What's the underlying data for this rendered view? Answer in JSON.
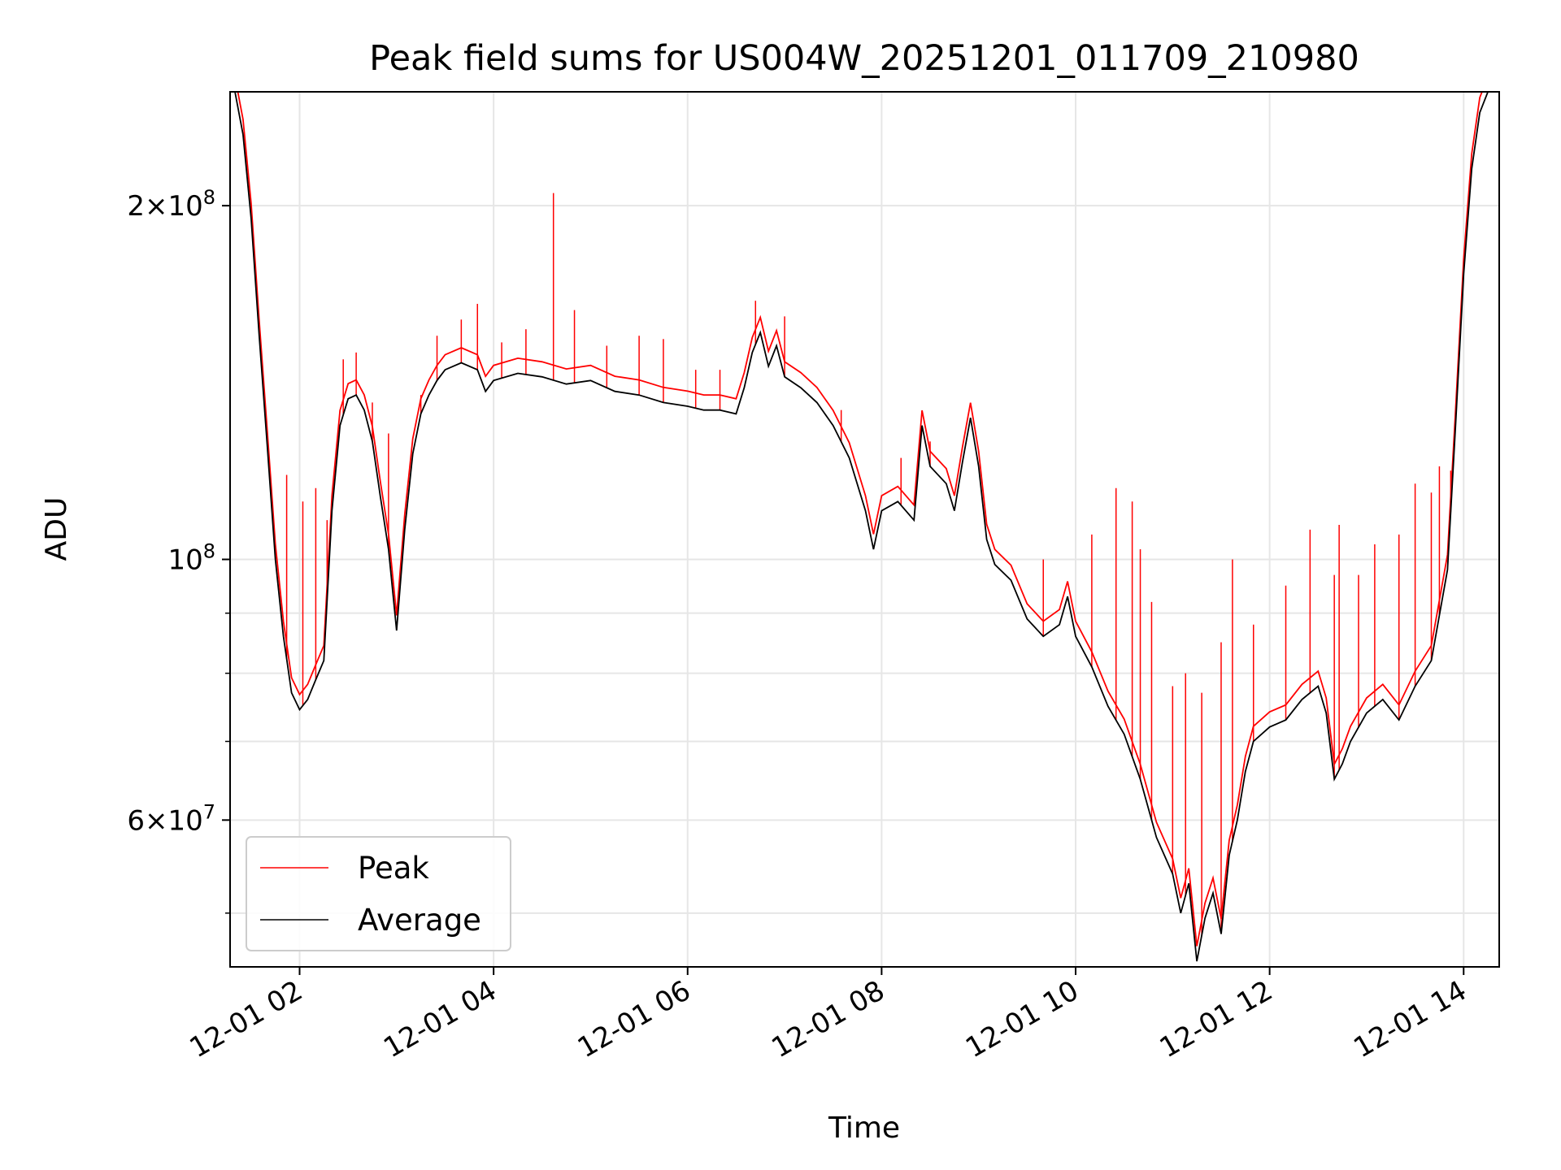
{
  "chart_data": {
    "type": "line",
    "title": "Peak field sums for US004W_20251201_011709_210980",
    "xlabel": "Time",
    "ylabel": "ADU",
    "yscale": "log",
    "ylim": [
      45000000,
      250000000
    ],
    "xlim": [
      "2025-12-01 01:17",
      "2025-12-01 14:22"
    ],
    "grid": true,
    "legend_position": "lower-left",
    "x_ticks": [
      "2025-12-01 02:00",
      "2025-12-01 04:00",
      "2025-12-01 06:00",
      "2025-12-01 08:00",
      "2025-12-01 10:00",
      "2025-12-01 12:00",
      "2025-12-01 14:00"
    ],
    "x_tick_labels": [
      "12-01 02",
      "12-01 04",
      "12-01 06",
      "12-01 08",
      "12-01 10",
      "12-01 12",
      "12-01 14"
    ],
    "y_ticks": [
      {
        "value": 200000000,
        "mantissa": "2",
        "exp": "8"
      },
      {
        "value": 100000000,
        "mantissa": "",
        "exp": "8"
      },
      {
        "value": 60000000,
        "mantissa": "6",
        "exp": "7"
      }
    ],
    "y_minor_ticks": [
      50000000,
      70000000,
      80000000,
      90000000
    ],
    "series": [
      {
        "name": "Average",
        "color": "#000000",
        "points": [
          [
            "2025-12-01 01:20",
            250000000
          ],
          [
            "2025-12-01 01:25",
            230000000
          ],
          [
            "2025-12-01 01:30",
            195000000
          ],
          [
            "2025-12-01 01:35",
            155000000
          ],
          [
            "2025-12-01 01:40",
            125000000
          ],
          [
            "2025-12-01 01:45",
            100000000
          ],
          [
            "2025-12-01 01:50",
            86000000
          ],
          [
            "2025-12-01 01:55",
            77000000
          ],
          [
            "2025-12-01 02:00",
            74500000
          ],
          [
            "2025-12-01 02:05",
            76000000
          ],
          [
            "2025-12-01 02:10",
            79000000
          ],
          [
            "2025-12-01 02:15",
            82000000
          ],
          [
            "2025-12-01 02:20",
            110000000
          ],
          [
            "2025-12-01 02:25",
            130000000
          ],
          [
            "2025-12-01 02:30",
            137000000
          ],
          [
            "2025-12-01 02:35",
            138000000
          ],
          [
            "2025-12-01 02:40",
            134000000
          ],
          [
            "2025-12-01 02:45",
            126000000
          ],
          [
            "2025-12-01 02:50",
            113000000
          ],
          [
            "2025-12-01 02:55",
            102000000
          ],
          [
            "2025-12-01 03:00",
            87000000
          ],
          [
            "2025-12-01 03:05",
            106000000
          ],
          [
            "2025-12-01 03:10",
            123000000
          ],
          [
            "2025-12-01 03:15",
            133000000
          ],
          [
            "2025-12-01 03:20",
            138000000
          ],
          [
            "2025-12-01 03:25",
            142000000
          ],
          [
            "2025-12-01 03:30",
            145000000
          ],
          [
            "2025-12-01 03:40",
            147000000
          ],
          [
            "2025-12-01 03:50",
            145000000
          ],
          [
            "2025-12-01 03:55",
            139000000
          ],
          [
            "2025-12-01 04:00",
            142000000
          ],
          [
            "2025-12-01 04:15",
            144000000
          ],
          [
            "2025-12-01 04:30",
            143000000
          ],
          [
            "2025-12-01 04:45",
            141000000
          ],
          [
            "2025-12-01 05:00",
            142000000
          ],
          [
            "2025-12-01 05:15",
            139000000
          ],
          [
            "2025-12-01 05:30",
            138000000
          ],
          [
            "2025-12-01 05:45",
            136000000
          ],
          [
            "2025-12-01 06:00",
            135000000
          ],
          [
            "2025-12-01 06:10",
            134000000
          ],
          [
            "2025-12-01 06:20",
            134000000
          ],
          [
            "2025-12-01 06:30",
            133000000
          ],
          [
            "2025-12-01 06:35",
            140000000
          ],
          [
            "2025-12-01 06:40",
            150000000
          ],
          [
            "2025-12-01 06:45",
            156000000
          ],
          [
            "2025-12-01 06:50",
            146000000
          ],
          [
            "2025-12-01 06:55",
            152000000
          ],
          [
            "2025-12-01 07:00",
            143000000
          ],
          [
            "2025-12-01 07:10",
            140000000
          ],
          [
            "2025-12-01 07:20",
            136000000
          ],
          [
            "2025-12-01 07:30",
            130000000
          ],
          [
            "2025-12-01 07:40",
            122000000
          ],
          [
            "2025-12-01 07:50",
            110000000
          ],
          [
            "2025-12-01 07:55",
            102000000
          ],
          [
            "2025-12-01 08:00",
            110000000
          ],
          [
            "2025-12-01 08:10",
            112000000
          ],
          [
            "2025-12-01 08:20",
            108000000
          ],
          [
            "2025-12-01 08:25",
            130000000
          ],
          [
            "2025-12-01 08:30",
            120000000
          ],
          [
            "2025-12-01 08:40",
            116000000
          ],
          [
            "2025-12-01 08:45",
            110000000
          ],
          [
            "2025-12-01 08:50",
            121000000
          ],
          [
            "2025-12-01 08:55",
            132000000
          ],
          [
            "2025-12-01 09:00",
            120000000
          ],
          [
            "2025-12-01 09:05",
            104000000
          ],
          [
            "2025-12-01 09:10",
            99000000
          ],
          [
            "2025-12-01 09:20",
            96000000
          ],
          [
            "2025-12-01 09:30",
            89000000
          ],
          [
            "2025-12-01 09:40",
            86000000
          ],
          [
            "2025-12-01 09:50",
            88000000
          ],
          [
            "2025-12-01 09:55",
            93000000
          ],
          [
            "2025-12-01 10:00",
            86000000
          ],
          [
            "2025-12-01 10:10",
            81000000
          ],
          [
            "2025-12-01 10:20",
            75000000
          ],
          [
            "2025-12-01 10:30",
            71000000
          ],
          [
            "2025-12-01 10:40",
            65000000
          ],
          [
            "2025-12-01 10:50",
            58000000
          ],
          [
            "2025-12-01 11:00",
            54000000
          ],
          [
            "2025-12-01 11:05",
            50000000
          ],
          [
            "2025-12-01 11:10",
            53000000
          ],
          [
            "2025-12-01 11:15",
            45500000
          ],
          [
            "2025-12-01 11:20",
            49500000
          ],
          [
            "2025-12-01 11:25",
            52000000
          ],
          [
            "2025-12-01 11:30",
            48000000
          ],
          [
            "2025-12-01 11:35",
            56000000
          ],
          [
            "2025-12-01 11:40",
            60000000
          ],
          [
            "2025-12-01 11:45",
            66000000
          ],
          [
            "2025-12-01 11:50",
            70000000
          ],
          [
            "2025-12-01 12:00",
            72000000
          ],
          [
            "2025-12-01 12:10",
            73000000
          ],
          [
            "2025-12-01 12:20",
            76000000
          ],
          [
            "2025-12-01 12:30",
            78000000
          ],
          [
            "2025-12-01 12:35",
            74000000
          ],
          [
            "2025-12-01 12:40",
            65000000
          ],
          [
            "2025-12-01 12:45",
            67000000
          ],
          [
            "2025-12-01 12:50",
            70000000
          ],
          [
            "2025-12-01 13:00",
            74000000
          ],
          [
            "2025-12-01 13:10",
            76000000
          ],
          [
            "2025-12-01 13:20",
            73000000
          ],
          [
            "2025-12-01 13:30",
            78000000
          ],
          [
            "2025-12-01 13:40",
            82000000
          ],
          [
            "2025-12-01 13:50",
            98000000
          ],
          [
            "2025-12-01 13:55",
            130000000
          ],
          [
            "2025-12-01 14:00",
            175000000
          ],
          [
            "2025-12-01 14:05",
            215000000
          ],
          [
            "2025-12-01 14:10",
            240000000
          ],
          [
            "2025-12-01 14:15",
            250000000
          ]
        ]
      },
      {
        "name": "Peak",
        "color": "#ff0000",
        "spikes": [
          [
            "2025-12-01 01:52",
            118000000
          ],
          [
            "2025-12-01 02:02",
            112000000
          ],
          [
            "2025-12-01 02:10",
            115000000
          ],
          [
            "2025-12-01 02:17",
            108000000
          ],
          [
            "2025-12-01 02:27",
            148000000
          ],
          [
            "2025-12-01 02:35",
            150000000
          ],
          [
            "2025-12-01 02:45",
            136000000
          ],
          [
            "2025-12-01 02:55",
            128000000
          ],
          [
            "2025-12-01 03:15",
            138000000
          ],
          [
            "2025-12-01 03:25",
            155000000
          ],
          [
            "2025-12-01 03:40",
            160000000
          ],
          [
            "2025-12-01 03:50",
            165000000
          ],
          [
            "2025-12-01 04:05",
            153000000
          ],
          [
            "2025-12-01 04:20",
            157000000
          ],
          [
            "2025-12-01 04:37",
            205000000
          ],
          [
            "2025-12-01 04:50",
            163000000
          ],
          [
            "2025-12-01 05:10",
            152000000
          ],
          [
            "2025-12-01 05:30",
            155000000
          ],
          [
            "2025-12-01 05:45",
            154000000
          ],
          [
            "2025-12-01 06:05",
            145000000
          ],
          [
            "2025-12-01 06:20",
            145000000
          ],
          [
            "2025-12-01 06:42",
            166000000
          ],
          [
            "2025-12-01 07:00",
            161000000
          ],
          [
            "2025-12-01 07:35",
            134000000
          ],
          [
            "2025-12-01 08:12",
            122000000
          ],
          [
            "2025-12-01 08:30",
            126000000
          ],
          [
            "2025-12-01 09:40",
            100000000
          ],
          [
            "2025-12-01 10:10",
            105000000
          ],
          [
            "2025-12-01 10:25",
            115000000
          ],
          [
            "2025-12-01 10:35",
            112000000
          ],
          [
            "2025-12-01 10:40",
            102000000
          ],
          [
            "2025-12-01 10:47",
            92000000
          ],
          [
            "2025-12-01 11:00",
            78000000
          ],
          [
            "2025-12-01 11:08",
            80000000
          ],
          [
            "2025-12-01 11:18",
            77000000
          ],
          [
            "2025-12-01 11:30",
            85000000
          ],
          [
            "2025-12-01 11:37",
            100000000
          ],
          [
            "2025-12-01 11:50",
            88000000
          ],
          [
            "2025-12-01 12:10",
            95000000
          ],
          [
            "2025-12-01 12:25",
            106000000
          ],
          [
            "2025-12-01 12:40",
            97000000
          ],
          [
            "2025-12-01 12:43",
            107000000
          ],
          [
            "2025-12-01 12:55",
            97000000
          ],
          [
            "2025-12-01 13:05",
            103000000
          ],
          [
            "2025-12-01 13:20",
            105000000
          ],
          [
            "2025-12-01 13:30",
            116000000
          ],
          [
            "2025-12-01 13:40",
            114000000
          ],
          [
            "2025-12-01 13:45",
            120000000
          ],
          [
            "2025-12-01 13:52",
            119000000
          ]
        ]
      }
    ]
  }
}
